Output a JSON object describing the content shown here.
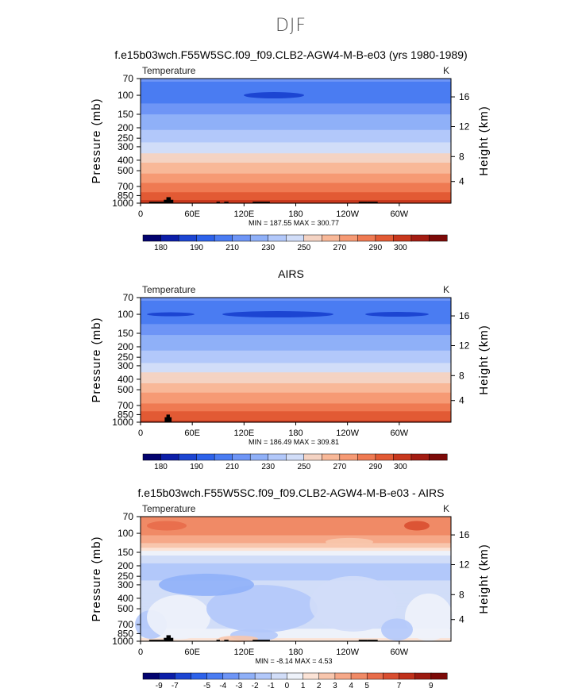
{
  "page": {
    "title": "DJF"
  },
  "chart_data": [
    {
      "type": "heatmap",
      "title": "f.e15b03wch.F55W5SC.f09_f09.CLB2-AGW4-M-B-e03 (yrs 1980-1989)",
      "subtitle_left": "Temperature",
      "subtitle_right": "K",
      "xlabel": "",
      "ylabel": "Pressure (mb)",
      "ylabel_right": "Height (km)",
      "x_ticks": [
        "0",
        "60E",
        "120E",
        "180",
        "120W",
        "60W"
      ],
      "y_ticks": [
        "70",
        "100",
        "150",
        "200",
        "250",
        "300",
        "400",
        "500",
        "700",
        "850",
        "1000"
      ],
      "y_ticks_right": [
        "16",
        "12",
        "8",
        "4"
      ],
      "stats": "MIN = 187.55   MAX = 300.77",
      "colorbar_labels": [
        "180",
        "190",
        "210",
        "230",
        "250",
        "270",
        "290",
        "300"
      ],
      "levels": [
        175,
        180,
        185,
        190,
        200,
        210,
        220,
        230,
        240,
        250,
        260,
        270,
        280,
        290,
        295,
        300
      ],
      "profile": [
        [
          70,
          201
        ],
        [
          90,
          196
        ],
        [
          100,
          194
        ],
        [
          120,
          200
        ],
        [
          150,
          210
        ],
        [
          200,
          218
        ],
        [
          250,
          226
        ],
        [
          300,
          234
        ],
        [
          400,
          248
        ],
        [
          500,
          258
        ],
        [
          700,
          274
        ],
        [
          850,
          284
        ],
        [
          1000,
          294
        ]
      ]
    },
    {
      "type": "heatmap",
      "title": "AIRS",
      "subtitle_left": "Temperature",
      "subtitle_right": "K",
      "xlabel": "",
      "ylabel": "Pressure (mb)",
      "ylabel_right": "Height (km)",
      "x_ticks": [
        "0",
        "60E",
        "120E",
        "180",
        "120W",
        "60W"
      ],
      "y_ticks": [
        "70",
        "100",
        "150",
        "200",
        "250",
        "300",
        "400",
        "500",
        "700",
        "850",
        "1000"
      ],
      "y_ticks_right": [
        "16",
        "12",
        "8",
        "4"
      ],
      "stats": "MIN = 186.49   MAX = 309.81",
      "colorbar_labels": [
        "180",
        "190",
        "210",
        "230",
        "250",
        "270",
        "290",
        "300"
      ],
      "levels": [
        175,
        180,
        185,
        190,
        200,
        210,
        220,
        230,
        240,
        250,
        260,
        270,
        280,
        290,
        295,
        300
      ],
      "profile": [
        [
          70,
          201
        ],
        [
          90,
          197
        ],
        [
          100,
          194
        ],
        [
          120,
          199
        ],
        [
          150,
          209
        ],
        [
          200,
          217
        ],
        [
          250,
          225
        ],
        [
          300,
          233
        ],
        [
          400,
          247
        ],
        [
          500,
          257
        ],
        [
          700,
          273
        ],
        [
          850,
          283
        ],
        [
          1000,
          293
        ]
      ]
    },
    {
      "type": "heatmap",
      "title": "f.e15b03wch.F55W5SC.f09_f09.CLB2-AGW4-M-B-e03 - AIRS",
      "subtitle_left": "Temperature",
      "subtitle_right": "K",
      "xlabel": "",
      "ylabel": "Pressure (mb)",
      "ylabel_right": "Height (km)",
      "x_ticks": [
        "0",
        "60E",
        "120E",
        "180",
        "120W",
        "60W"
      ],
      "y_ticks": [
        "70",
        "100",
        "150",
        "200",
        "250",
        "300",
        "400",
        "500",
        "700",
        "850",
        "1000"
      ],
      "y_ticks_right": [
        "16",
        "12",
        "8",
        "4"
      ],
      "stats": "MIN =   -8.14   MAX =     4.53",
      "colorbar_labels": [
        "-9",
        "-7",
        "-5",
        "-4",
        "-3",
        "-2",
        "-1",
        "0",
        "1",
        "2",
        "3",
        "4",
        "5",
        "7",
        "9"
      ],
      "levels": [
        -10,
        -9,
        -8,
        -7,
        -6,
        -5,
        -4,
        -3,
        -2,
        -1,
        0,
        1,
        2,
        3,
        4,
        5,
        6,
        7,
        8,
        9
      ],
      "profile": [
        [
          70,
          2.8
        ],
        [
          100,
          2.2
        ],
        [
          130,
          0.6
        ],
        [
          150,
          -1.5
        ],
        [
          200,
          -3.5
        ],
        [
          250,
          -3.2
        ],
        [
          300,
          -2.8
        ],
        [
          400,
          -2.5
        ],
        [
          500,
          -2.2
        ],
        [
          700,
          -2.4
        ],
        [
          850,
          -1.6
        ],
        [
          1000,
          -0.5
        ]
      ]
    }
  ]
}
